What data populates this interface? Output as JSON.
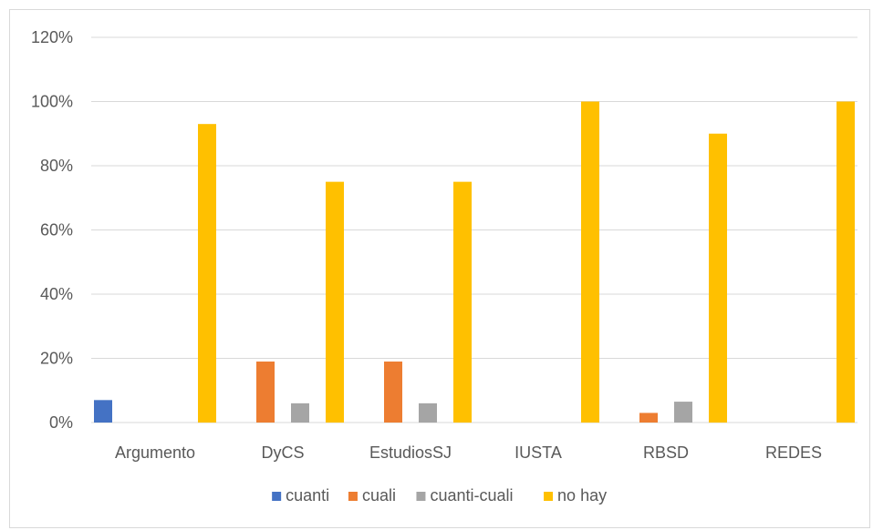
{
  "chart_data": {
    "type": "bar",
    "title": "",
    "xlabel": "",
    "ylabel": "",
    "ylim": [
      0,
      1.2
    ],
    "y_ticks": [
      0,
      0.2,
      0.4,
      0.6,
      0.8,
      1.0,
      1.2
    ],
    "y_tick_labels": [
      "0%",
      "20%",
      "40%",
      "60%",
      "80%",
      "100%",
      "120%"
    ],
    "grid": true,
    "legend_position": "bottom",
    "categories": [
      "Argumento",
      "DyCS",
      "EstudiosSJ",
      "IUSTA",
      "RBSD",
      "REDES"
    ],
    "series": [
      {
        "name": "cuanti",
        "color": "#4472C4",
        "values": [
          0.07,
          0,
          0,
          0,
          0,
          0
        ]
      },
      {
        "name": "cuali",
        "color": "#ED7D31",
        "values": [
          0,
          0.19,
          0.19,
          0,
          0.03,
          0
        ]
      },
      {
        "name": "cuanti-cuali",
        "color": "#A5A5A5",
        "values": [
          0,
          0.06,
          0.06,
          0,
          0.065,
          0
        ]
      },
      {
        "name": "no hay",
        "color": "#FFC000",
        "values": [
          0.93,
          0.75,
          0.75,
          1.0,
          0.9,
          1.0
        ]
      }
    ]
  }
}
